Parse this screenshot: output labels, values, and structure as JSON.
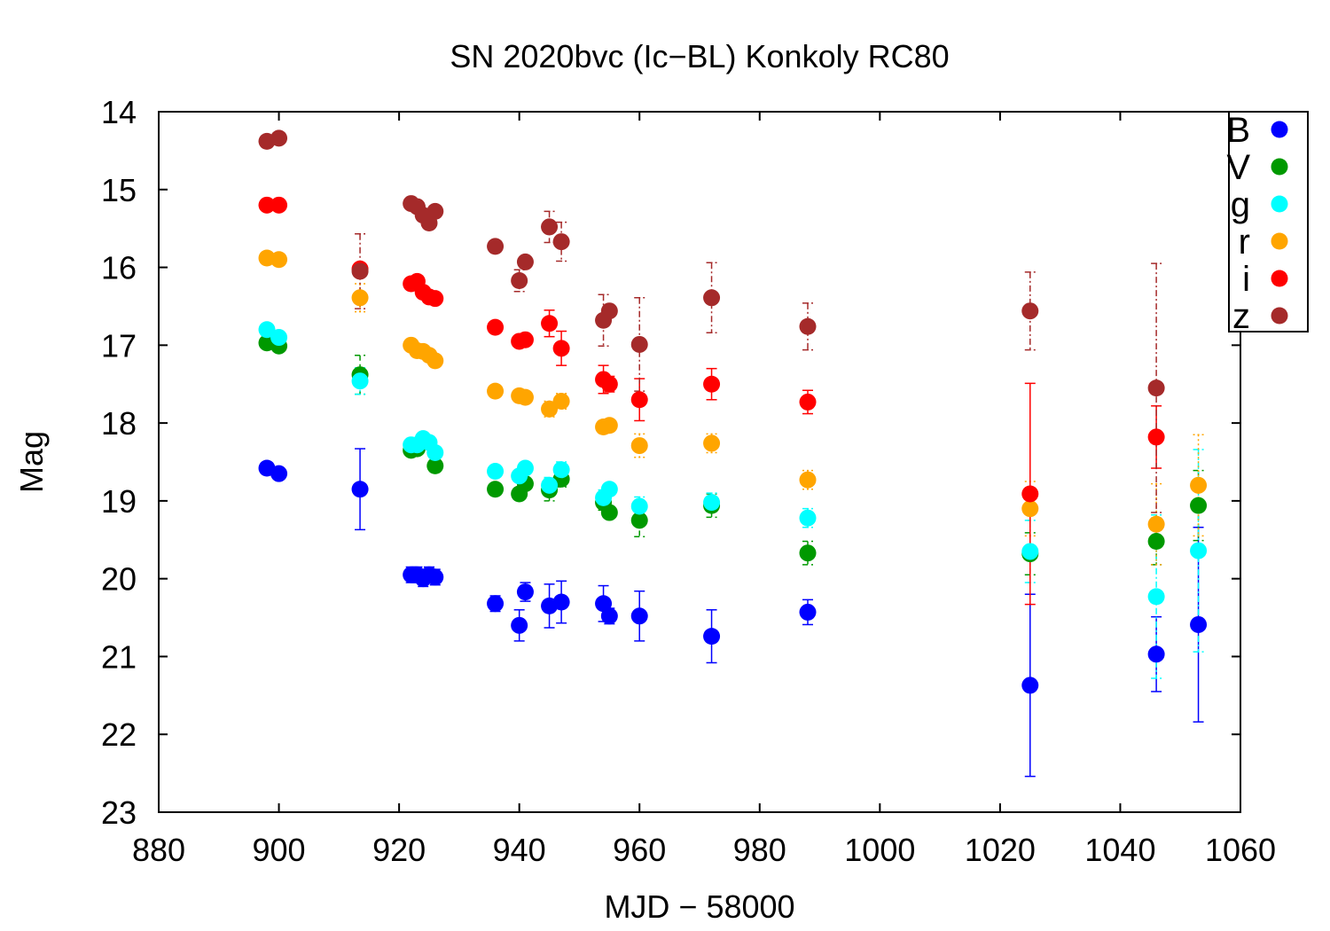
{
  "chart_data": {
    "type": "scatter",
    "title": "SN 2020bvc (Ic−BL) Konkoly RC80",
    "xlabel": "MJD − 58000",
    "ylabel": "Mag",
    "xlim": [
      880,
      1060
    ],
    "ylim": [
      14,
      23
    ],
    "y_inverted": true,
    "x_ticks": [
      880,
      900,
      920,
      940,
      960,
      980,
      1000,
      1020,
      1040,
      1060
    ],
    "y_ticks": [
      14,
      15,
      16,
      17,
      18,
      19,
      20,
      21,
      22,
      23
    ],
    "legend_position": "top-right",
    "grid": false,
    "series": [
      {
        "name": "B",
        "color": "#0000ff",
        "errorbar_style": "solid",
        "x": [
          898,
          900,
          913.5,
          922,
          923,
          924,
          925,
          926,
          936,
          940,
          941,
          945,
          947,
          954,
          955,
          960,
          972,
          988,
          1025,
          1046,
          1053
        ],
        "y": [
          18.58,
          18.65,
          18.85,
          19.95,
          19.95,
          20.0,
          19.95,
          19.98,
          20.32,
          20.6,
          20.17,
          20.35,
          20.3,
          20.32,
          20.48,
          20.48,
          20.74,
          20.43,
          21.37,
          20.97,
          20.59
        ],
        "err": [
          0.0,
          0.0,
          0.52,
          0.1,
          0.1,
          0.1,
          0.1,
          0.1,
          0.1,
          0.2,
          0.12,
          0.28,
          0.27,
          0.23,
          0.1,
          0.32,
          0.34,
          0.16,
          1.17,
          0.48,
          1.25
        ]
      },
      {
        "name": "V",
        "color": "#009900",
        "errorbar_style": "dashed",
        "x": [
          898,
          900,
          913.5,
          922,
          923,
          926,
          936,
          940,
          941,
          945,
          947,
          954,
          955,
          960,
          972,
          988,
          1025,
          1046,
          1053
        ],
        "y": [
          16.97,
          17.01,
          17.38,
          18.35,
          18.33,
          18.55,
          18.85,
          18.91,
          18.78,
          18.86,
          18.72,
          19.02,
          19.15,
          19.25,
          19.06,
          19.67,
          19.68,
          19.52,
          19.06
        ],
        "err": [
          0.0,
          0.0,
          0.25,
          0.05,
          0.05,
          0.05,
          0.05,
          0.05,
          0.05,
          0.14,
          0.1,
          0.1,
          0.05,
          0.21,
          0.15,
          0.15,
          0.27,
          0.3,
          0.45
        ]
      },
      {
        "name": "g",
        "color": "#00ffff",
        "errorbar_style": "dash-dot",
        "x": [
          898,
          900,
          913.5,
          922,
          923,
          924,
          925,
          926,
          936,
          940,
          941,
          945,
          947,
          954,
          955,
          960,
          972,
          988,
          1025,
          1046,
          1053
        ],
        "y": [
          16.8,
          16.9,
          17.46,
          18.28,
          18.28,
          18.2,
          18.25,
          18.38,
          18.62,
          18.68,
          18.58,
          18.8,
          18.6,
          18.96,
          18.85,
          19.07,
          19.02,
          19.22,
          19.65,
          20.23,
          19.64
        ],
        "err": [
          0.0,
          0.0,
          0.17,
          0.05,
          0.05,
          0.05,
          0.05,
          0.05,
          0.05,
          0.05,
          0.05,
          0.1,
          0.1,
          0.1,
          0.05,
          0.12,
          0.12,
          0.12,
          0.4,
          1.05,
          1.3
        ]
      },
      {
        "name": "r",
        "color": "#ffa500",
        "errorbar_style": "dotted",
        "x": [
          898,
          900,
          913.5,
          922,
          923,
          924,
          925,
          926,
          936,
          940,
          941,
          945,
          947,
          954,
          955,
          960,
          972,
          988,
          1025,
          1046,
          1053
        ],
        "y": [
          15.88,
          15.9,
          16.39,
          17.0,
          17.07,
          17.08,
          17.13,
          17.2,
          17.59,
          17.65,
          17.67,
          17.82,
          17.72,
          18.05,
          18.03,
          18.29,
          18.26,
          18.73,
          19.1,
          19.3,
          18.8
        ],
        "err": [
          0.0,
          0.0,
          0.18,
          0.05,
          0.05,
          0.05,
          0.05,
          0.05,
          0.05,
          0.05,
          0.05,
          0.1,
          0.1,
          0.08,
          0.05,
          0.15,
          0.12,
          0.12,
          0.35,
          0.52,
          0.65
        ]
      },
      {
        "name": "i",
        "color": "#ff0000",
        "errorbar_style": "solid",
        "x": [
          898,
          900,
          913.5,
          922,
          923,
          924,
          925,
          926,
          936,
          940,
          941,
          945,
          947,
          954,
          955,
          960,
          972,
          988,
          1025,
          1046
        ],
        "y": [
          15.2,
          15.2,
          16.02,
          16.21,
          16.18,
          16.32,
          16.38,
          16.4,
          16.77,
          16.95,
          16.93,
          16.72,
          17.04,
          17.44,
          17.5,
          17.7,
          17.5,
          17.73,
          18.91,
          18.18
        ],
        "err": [
          0.0,
          0.0,
          0.0,
          0.05,
          0.05,
          0.05,
          0.05,
          0.05,
          0.05,
          0.05,
          0.05,
          0.17,
          0.22,
          0.18,
          0.1,
          0.27,
          0.2,
          0.15,
          1.42,
          0.4
        ]
      },
      {
        "name": "z",
        "color": "#a52a2a",
        "errorbar_style": "dash-dot",
        "x": [
          898,
          900,
          913.5,
          922,
          923,
          924,
          925,
          926,
          936,
          940,
          941,
          945,
          947,
          954,
          955,
          960,
          972,
          988,
          1025,
          1046
        ],
        "y": [
          14.38,
          14.34,
          16.05,
          15.18,
          15.22,
          15.33,
          15.43,
          15.28,
          15.73,
          16.17,
          15.93,
          15.48,
          15.67,
          16.68,
          16.56,
          16.99,
          16.39,
          16.76,
          16.56,
          17.55
        ],
        "err": [
          0.0,
          0.0,
          0.48,
          0.05,
          0.05,
          0.05,
          0.05,
          0.05,
          0.05,
          0.14,
          0.05,
          0.2,
          0.25,
          0.33,
          0.05,
          0.6,
          0.45,
          0.3,
          0.5,
          1.6
        ]
      }
    ]
  }
}
